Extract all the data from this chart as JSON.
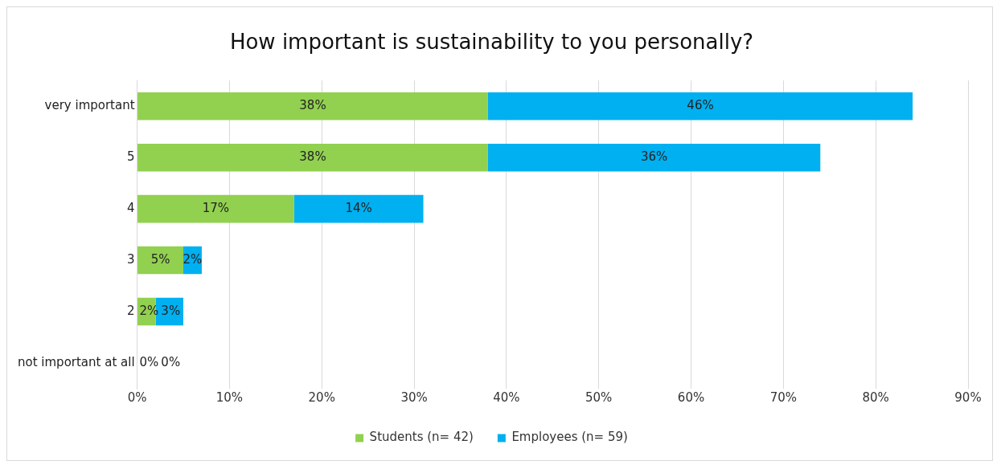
{
  "chart_data": {
    "type": "bar",
    "orientation": "horizontal",
    "stacked": true,
    "title": "How important is sustainability to you personally?",
    "categories": [
      "very important",
      "5",
      "4",
      "3",
      "2",
      "not important at all"
    ],
    "series": [
      {
        "name": "Students (n= 42)",
        "color": "#92d050",
        "values": [
          38,
          38,
          17,
          5,
          2,
          0
        ]
      },
      {
        "name": "Employees (n= 59)",
        "color": "#00b0f0",
        "values": [
          46,
          36,
          14,
          2,
          3,
          0
        ]
      }
    ],
    "xlim": [
      0,
      90
    ],
    "xticks": [
      {
        "value": 0,
        "label": "0%"
      },
      {
        "value": 10,
        "label": "10%"
      },
      {
        "value": 20,
        "label": "20%"
      },
      {
        "value": 30,
        "label": "30%"
      },
      {
        "value": 40,
        "label": "40%"
      },
      {
        "value": 50,
        "label": "50%"
      },
      {
        "value": 60,
        "label": "60%"
      },
      {
        "value": 70,
        "label": "70%"
      },
      {
        "value": 80,
        "label": "80%"
      },
      {
        "value": 90,
        "label": "90%"
      }
    ],
    "value_labels": [
      [
        "38%",
        "38%",
        "17%",
        "5%",
        "2%",
        "0%"
      ],
      [
        "46%",
        "36%",
        "14%",
        "2%",
        "3%",
        "0%"
      ]
    ],
    "grid": "x",
    "legend": "bottom"
  }
}
